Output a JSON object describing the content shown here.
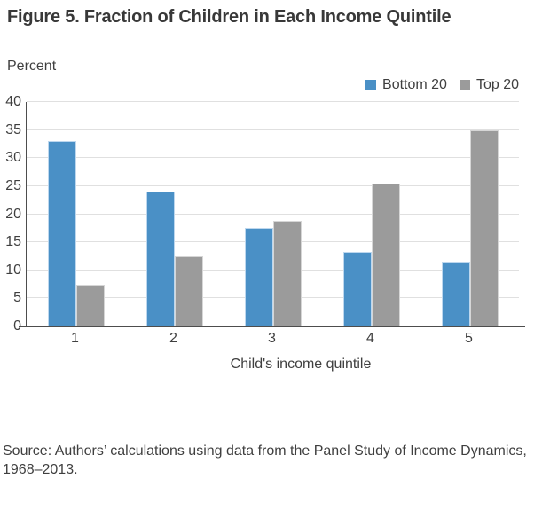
{
  "figure": {
    "title": "Figure 5. Fraction of Children in Each Income Quintile",
    "y_unit_label": "Percent",
    "x_axis_title": "Child's income quintile",
    "source_note": "Source: Authors’ calculations using data from the Panel Study of Income Dynamics, 1968–2013."
  },
  "legend": [
    {
      "label": "Bottom 20",
      "color": "#4A90C6"
    },
    {
      "label": "Top 20",
      "color": "#9B9B9B"
    }
  ],
  "chart_data": {
    "type": "bar",
    "title": "Figure 5. Fraction of Children in Each Income Quintile",
    "categories": [
      "1",
      "2",
      "3",
      "4",
      "5"
    ],
    "series": [
      {
        "name": "Bottom 20",
        "color": "#4A90C6",
        "values": [
          33.0,
          24.0,
          17.5,
          13.3,
          11.6
        ]
      },
      {
        "name": "Top 20",
        "color": "#9B9B9B",
        "values": [
          7.5,
          12.5,
          18.8,
          25.5,
          35.0
        ]
      }
    ],
    "xlabel": "Child's income quintile",
    "ylabel": "Percent",
    "ylim": [
      0,
      40
    ],
    "yticks": [
      0,
      5,
      10,
      15,
      20,
      25,
      30,
      35,
      40
    ],
    "grid": true,
    "gridline_color": "#e0e0e0",
    "axis_color": "#4d4d4d",
    "legend_position": "top-right"
  }
}
